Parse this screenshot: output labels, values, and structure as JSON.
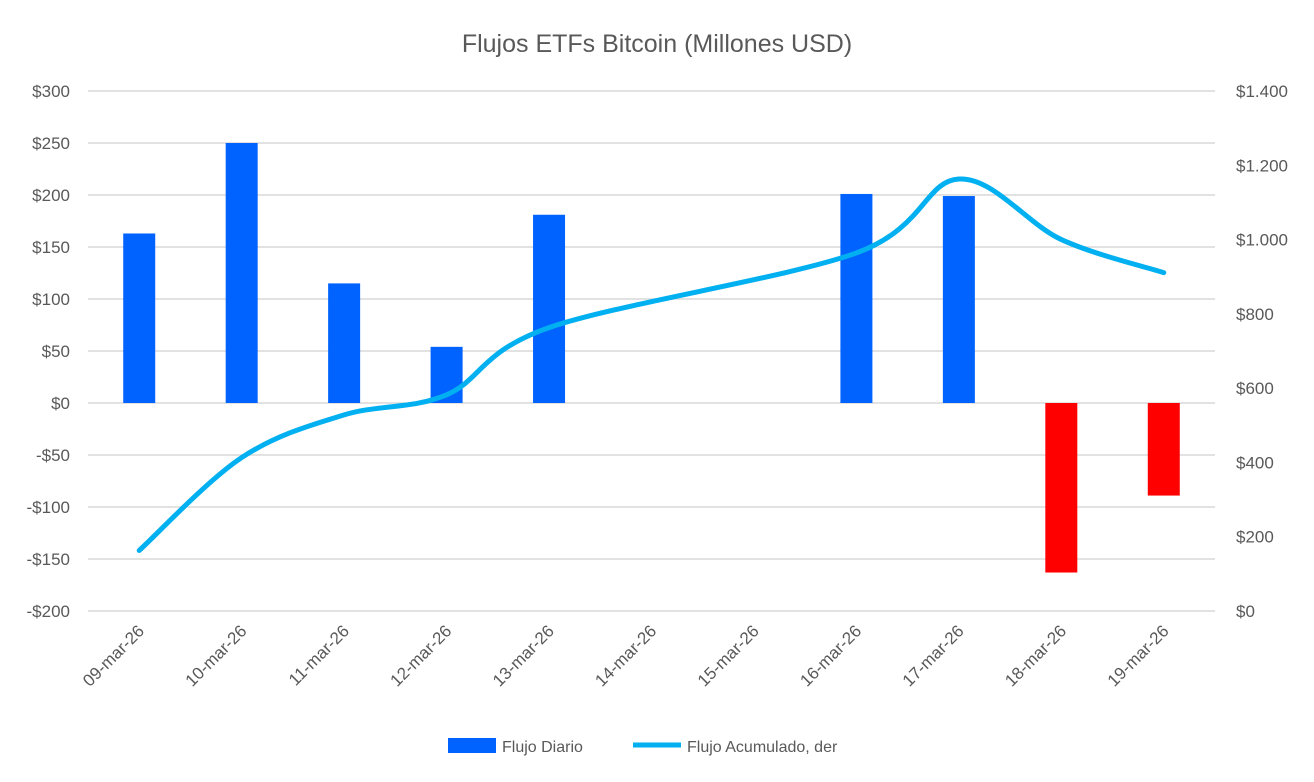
{
  "chart_data": {
    "type": "bar+line",
    "title": "Flujos ETFs Bitcoin (Millones USD)",
    "categories": [
      "09-mar-26",
      "10-mar-26",
      "11-mar-26",
      "12-mar-26",
      "13-mar-26",
      "14-mar-26",
      "15-mar-26",
      "16-mar-26",
      "17-mar-26",
      "18-mar-26",
      "19-mar-26"
    ],
    "series": [
      {
        "name": "Flujo Diario",
        "type": "bar",
        "axis": "left",
        "color": "#0062FF",
        "negative_color": "#FF0000",
        "values": [
          163,
          250,
          115,
          54,
          181,
          null,
          null,
          201,
          199,
          -163,
          -89
        ]
      },
      {
        "name": "Flujo Acumulado, der",
        "type": "line",
        "axis": "right",
        "color": "#00B0F0",
        "smooth": true,
        "values": [
          163,
          413,
          528,
          582,
          763,
          null,
          null,
          964,
          1163,
          1000,
          911
        ]
      }
    ],
    "y_left": {
      "range": [
        -200,
        300
      ],
      "ticks": [
        300,
        250,
        200,
        150,
        100,
        50,
        0,
        -50,
        -100,
        -150,
        -200
      ],
      "tick_labels": [
        "$300",
        "$250",
        "$200",
        "$150",
        "$100",
        "$50",
        "$0",
        "-$50",
        "-$100",
        "-$150",
        "-$200"
      ]
    },
    "y_right": {
      "range": [
        0,
        1400
      ],
      "ticks": [
        1400,
        1200,
        1000,
        800,
        600,
        400,
        200,
        0
      ],
      "tick_labels": [
        "$1.400",
        "$1.200",
        "$1.000",
        "$800",
        "$600",
        "$400",
        "$200",
        "$0"
      ]
    },
    "grid": true,
    "legend_position": "bottom"
  }
}
